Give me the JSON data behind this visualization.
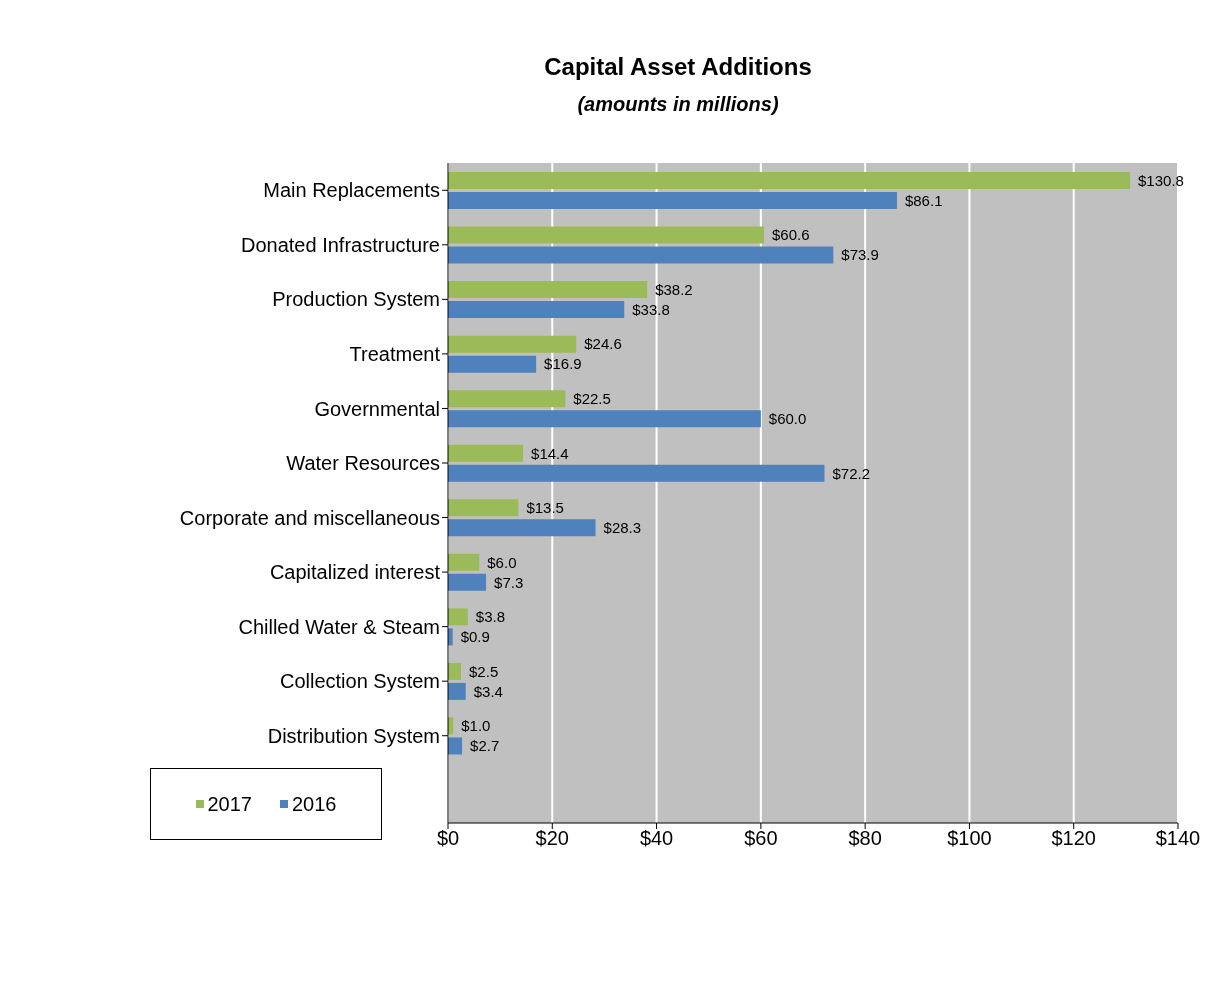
{
  "chart_data": {
    "type": "bar",
    "orientation": "horizontal",
    "title": "Capital Asset Additions",
    "subtitle": "(amounts in millions)",
    "categories": [
      "Main Replacements",
      "Donated Infrastructure",
      "Production System",
      "Treatment",
      "Governmental",
      "Water Resources",
      "Corporate and miscellaneous",
      "Capitalized interest",
      "Chilled Water & Steam",
      "Collection System",
      "Distribution System"
    ],
    "series": [
      {
        "name": "2017",
        "color": "#9bbb59",
        "values": [
          130.8,
          60.6,
          38.2,
          24.6,
          22.5,
          14.4,
          13.5,
          6.0,
          3.8,
          2.5,
          1.0
        ],
        "value_labels": [
          "$130.8",
          "$60.6",
          "$38.2",
          "$24.6",
          "$22.5",
          "$14.4",
          "$13.5",
          "$6.0",
          "$3.8",
          "$2.5",
          "$1.0"
        ]
      },
      {
        "name": "2016",
        "color": "#4f81bd",
        "values": [
          86.1,
          73.9,
          33.8,
          16.9,
          60.0,
          72.2,
          28.3,
          7.3,
          0.9,
          3.4,
          2.7
        ],
        "value_labels": [
          "$86.1",
          "$73.9",
          "$33.8",
          "$16.9",
          "$60.0",
          "$72.2",
          "$28.3",
          "$7.3",
          "$0.9",
          "$3.4",
          "$2.7"
        ]
      }
    ],
    "xlim": [
      0,
      140
    ],
    "xticks": [
      {
        "value": 0,
        "label": "$0"
      },
      {
        "value": 20,
        "label": "$20"
      },
      {
        "value": 40,
        "label": "$40"
      },
      {
        "value": 60,
        "label": "$60"
      },
      {
        "value": 80,
        "label": "$80"
      },
      {
        "value": 100,
        "label": "$100"
      },
      {
        "value": 120,
        "label": "$120"
      },
      {
        "value": 140,
        "label": "$140"
      }
    ],
    "grid": "x",
    "legend": "bottom left"
  }
}
